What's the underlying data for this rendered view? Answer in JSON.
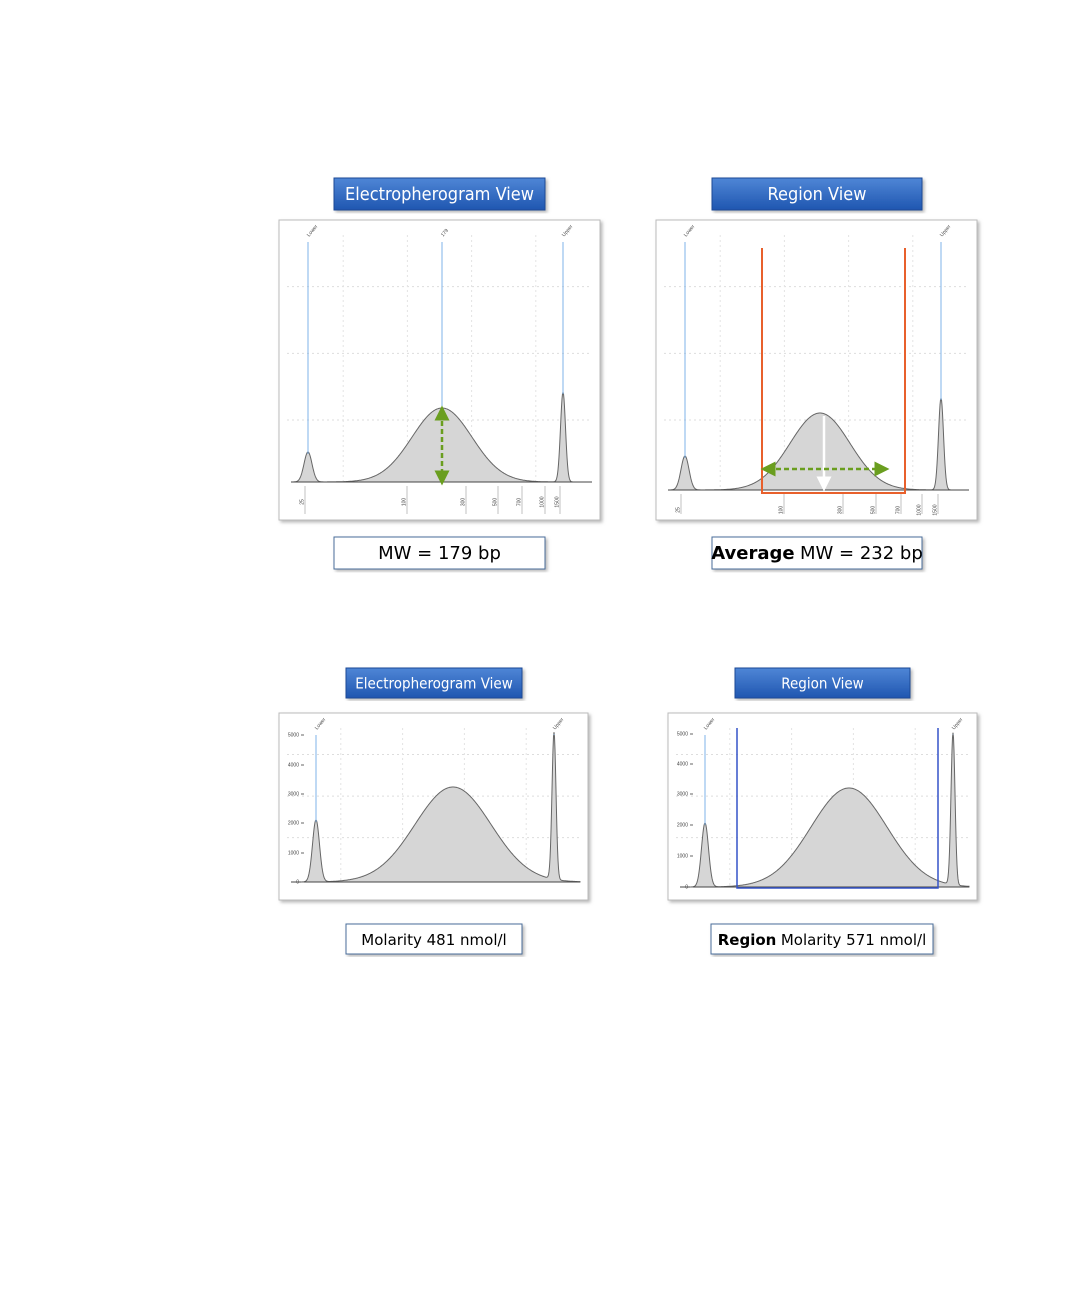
{
  "panels": [
    {
      "header": "Electropherogram View",
      "caption": "MW = 179 bp",
      "peak_labels": [
        "Lower",
        "179",
        "Upper"
      ],
      "x_labels": [
        "25",
        "100",
        "300",
        "500",
        "700",
        "1000",
        "1500"
      ]
    },
    {
      "header": "Region View",
      "caption_bold": "Average",
      "caption": "MW = 232 bp",
      "peak_labels": [
        "Lower",
        "Upper"
      ],
      "x_labels": [
        "25",
        "100",
        "300",
        "500",
        "700",
        "1000",
        "1500"
      ]
    },
    {
      "header": "Electropherogram View",
      "caption": "Molarity 481 nmol/l",
      "peak_labels": [
        "Lower",
        "Upper"
      ],
      "y_labels": [
        "5000",
        "4000",
        "3000",
        "2000",
        "1000",
        "0"
      ]
    },
    {
      "header": "Region View",
      "caption_bold": "Region",
      "caption": "Molarity 571 nmol/l",
      "peak_labels": [
        "Lower",
        "Upper"
      ],
      "y_labels": [
        "5000",
        "4000",
        "3000",
        "2000",
        "1000",
        "0"
      ]
    }
  ]
}
